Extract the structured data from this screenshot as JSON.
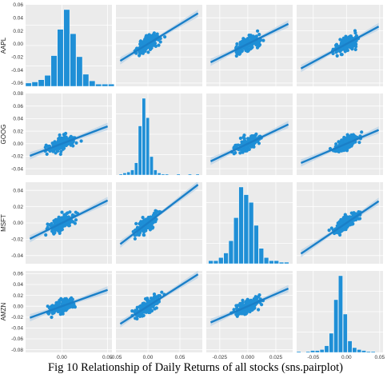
{
  "caption": "Fig 10 Relationship of Daily Returns of all stocks (sns.pairplot)",
  "colors": {
    "point": "#1f8fd6",
    "line": "#1a7fc8",
    "band": "#a9cbe6",
    "panel": "#ebebeb",
    "grid": "#ffffff"
  },
  "chart_data": {
    "type": "scatter",
    "kind": "pairplot",
    "variables": [
      "AAPL",
      "GOOG",
      "MSFT",
      "AMZN"
    ],
    "diag_kind": "hist",
    "regression_lines": true,
    "grid": true,
    "y_ticks": {
      "AAPL": [
        0.06,
        0.04,
        0.02,
        0.0,
        -0.02,
        -0.04,
        -0.06
      ],
      "GOOG": [
        0.08,
        0.06,
        0.04,
        0.02,
        0.0,
        -0.02,
        -0.04
      ],
      "MSFT": [
        0.04,
        0.02,
        0.0,
        -0.02,
        -0.04
      ],
      "AMZN": [
        0.06,
        0.04,
        0.02,
        0.0,
        -0.02,
        -0.04,
        -0.06,
        -0.08
      ]
    },
    "x_ticks": {
      "AAPL": [
        0.0,
        0.05
      ],
      "GOOG": [
        -0.05,
        0.0,
        0.05
      ],
      "MSFT": [
        -0.025,
        0.0,
        0.025
      ],
      "AMZN": [
        -0.05,
        0.0,
        0.05
      ]
    },
    "x_tick_labels": {
      "AAPL": [
        "0.00",
        "0.05"
      ],
      "GOOG": [
        "-0.05",
        "0.00",
        "0.05"
      ],
      "MSFT": [
        "-0.025",
        "0.000",
        "0.025"
      ],
      "AMZN": [
        "-0.05",
        "0.00",
        "0.05"
      ]
    },
    "y_tick_labels": {
      "AAPL": [
        "0.06",
        "0.04",
        "0.02",
        "0.00",
        "-0.02",
        "-0.04",
        "-0.06"
      ],
      "GOOG": [
        "0.08",
        "0.06",
        "0.04",
        "0.02",
        "0.00",
        "-0.02",
        "-0.04"
      ],
      "MSFT": [
        "0.04",
        "0.02",
        "0.00",
        "-0.02",
        "-0.04"
      ],
      "AMZN": [
        "0.06",
        "0.04",
        "0.02",
        "0.00",
        "-0.02",
        "-0.04",
        "-0.06",
        "-0.08"
      ]
    },
    "x_ranges": {
      "AAPL": [
        -0.04,
        0.055
      ],
      "GOOG": [
        -0.05,
        0.085
      ],
      "MSFT": [
        -0.037,
        0.04
      ],
      "AMZN": [
        -0.075,
        0.055
      ]
    },
    "y_ranges": {
      "AAPL": [
        -0.065,
        0.06
      ],
      "GOOG": [
        -0.05,
        0.08
      ],
      "MSFT": [
        -0.05,
        0.05
      ],
      "AMZN": [
        -0.085,
        0.065
      ]
    },
    "regression_slopes": {
      "GOOG_vs_AAPL": 0.55,
      "MSFT_vs_AAPL": 0.55,
      "AMZN_vs_AAPL": 0.6,
      "AAPL_vs_GOOG": 0.6,
      "MSFT_vs_GOOG": 0.6,
      "AMZN_vs_GOOG": 0.75,
      "AAPL_vs_MSFT": 0.85,
      "GOOG_vs_MSFT": 0.85,
      "AMZN_vs_MSFT": 0.9,
      "AAPL_vs_AMZN": 0.55,
      "GOOG_vs_AMZN": 0.45,
      "MSFT_vs_AMZN": 0.55
    },
    "diag_histograms": {
      "AAPL": {
        "bin_start": -0.04,
        "bin_width": 0.007,
        "counts": [
          3,
          4,
          6,
          10,
          28,
          52,
          70,
          48,
          27,
          11,
          5,
          2,
          2,
          2
        ]
      },
      "GOOG": {
        "bin_start": -0.045,
        "bin_width": 0.006,
        "counts": [
          1,
          2,
          3,
          5,
          12,
          48,
          75,
          56,
          18,
          5,
          2,
          1,
          1,
          0,
          0,
          1,
          0,
          0,
          1,
          0,
          1
        ]
      },
      "MSFT": {
        "bin_start": -0.035,
        "bin_width": 0.0045,
        "counts": [
          2,
          2,
          4,
          7,
          15,
          30,
          50,
          45,
          40,
          25,
          10,
          4,
          2,
          2,
          1,
          1
        ]
      },
      "AMZN": {
        "bin_start": -0.075,
        "bin_width": 0.007,
        "counts": [
          1,
          0,
          1,
          2,
          2,
          3,
          7,
          20,
          55,
          80,
          40,
          12,
          5,
          3,
          2,
          1,
          1
        ]
      }
    }
  }
}
